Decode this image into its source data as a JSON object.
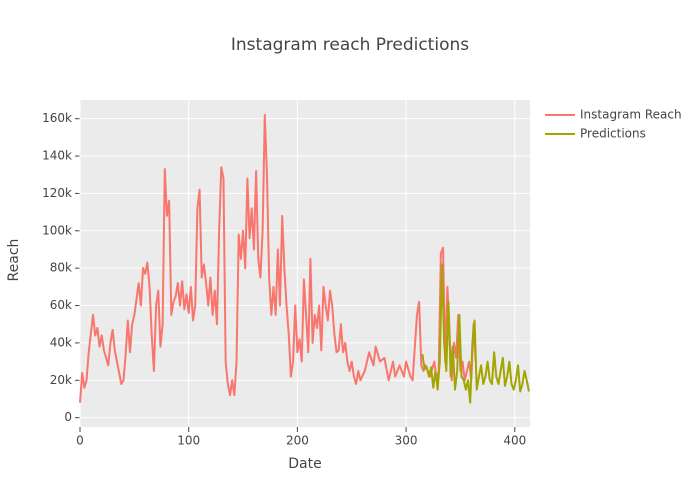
{
  "chart_data": {
    "type": "line",
    "title": "Instagram reach Predictions",
    "x_label": "Date",
    "y_label": "Reach",
    "xlim": [
      0,
      414
    ],
    "xticks": [
      0,
      100,
      200,
      300,
      400
    ],
    "ylim": [
      -5000,
      170000
    ],
    "yticks": [
      0,
      {
        "value": 20000,
        "label": "20k"
      },
      {
        "value": 40000,
        "label": "40k"
      },
      {
        "value": 60000,
        "label": "60k"
      },
      {
        "value": 80000,
        "label": "80k"
      },
      {
        "value": 100000,
        "label": "100k"
      },
      {
        "value": 120000,
        "label": "120k"
      },
      {
        "value": 140000,
        "label": "140k"
      },
      {
        "value": 160000,
        "label": "160k"
      }
    ],
    "grid": true,
    "legend": "top-right",
    "series": [
      {
        "name": "Instagram Reach",
        "color": "#f8766d",
        "x": [
          0,
          2,
          4,
          6,
          8,
          10,
          12,
          14,
          16,
          18,
          20,
          22,
          26,
          28,
          30,
          32,
          34,
          36,
          38,
          40,
          42,
          44,
          46,
          48,
          50,
          54,
          56,
          58,
          60,
          62,
          64,
          66,
          68,
          70,
          72,
          74,
          76,
          78,
          80,
          82,
          84,
          86,
          88,
          90,
          92,
          94,
          96,
          98,
          100,
          102,
          104,
          106,
          108,
          110,
          112,
          114,
          116,
          118,
          120,
          122,
          124,
          126,
          128,
          130,
          132,
          134,
          136,
          138,
          140,
          142,
          144,
          146,
          148,
          150,
          152,
          154,
          156,
          158,
          160,
          162,
          164,
          166,
          168,
          170,
          172,
          174,
          176,
          178,
          180,
          182,
          184,
          186,
          188,
          190,
          192,
          194,
          196,
          198,
          200,
          202,
          204,
          206,
          208,
          210,
          212,
          214,
          216,
          218,
          220,
          222,
          224,
          226,
          228,
          230,
          232,
          234,
          236,
          238,
          240,
          242,
          244,
          246,
          248,
          250,
          252,
          254,
          256,
          258,
          262,
          266,
          270,
          272,
          276,
          280,
          284,
          288,
          290,
          294,
          298,
          300,
          304,
          306,
          310,
          312,
          314,
          316,
          318,
          322,
          326,
          328,
          330,
          332,
          334,
          336,
          338,
          340,
          342,
          344,
          346,
          348,
          350,
          352,
          354,
          356,
          358,
          360,
          362,
          364
        ],
        "values": [
          8000,
          24000,
          16000,
          20000,
          35000,
          45000,
          55000,
          44000,
          48000,
          38000,
          44000,
          36000,
          28000,
          40000,
          47000,
          36000,
          30000,
          24000,
          18000,
          20000,
          34000,
          52000,
          35000,
          50000,
          55000,
          72000,
          60000,
          80000,
          77000,
          83000,
          70000,
          44000,
          25000,
          60000,
          68000,
          38000,
          50000,
          133000,
          108000,
          116000,
          55000,
          62000,
          65000,
          72000,
          60000,
          73000,
          58000,
          66000,
          56000,
          70000,
          52000,
          60000,
          112000,
          122000,
          75000,
          82000,
          72000,
          60000,
          75000,
          55000,
          68000,
          50000,
          100000,
          134000,
          128000,
          30000,
          18000,
          12000,
          20000,
          12000,
          30000,
          98000,
          85000,
          100000,
          80000,
          128000,
          96000,
          112000,
          90000,
          132000,
          85000,
          75000,
          100000,
          162000,
          130000,
          75000,
          55000,
          70000,
          55000,
          90000,
          60000,
          108000,
          80000,
          60000,
          45000,
          22000,
          30000,
          60000,
          35000,
          42000,
          30000,
          74000,
          55000,
          35000,
          85000,
          40000,
          55000,
          48000,
          60000,
          36000,
          70000,
          60000,
          52000,
          68000,
          60000,
          45000,
          35000,
          36000,
          50000,
          35000,
          40000,
          30000,
          25000,
          30000,
          22000,
          18000,
          25000,
          20000,
          25000,
          35000,
          28000,
          38000,
          30000,
          32000,
          20000,
          30000,
          22000,
          28000,
          22000,
          30000,
          22000,
          20000,
          55000,
          62000,
          28000,
          25000,
          28000,
          22000,
          30000,
          20000,
          25000,
          88000,
          91000,
          30000,
          70000,
          45000,
          20000,
          40000,
          32000,
          55000,
          25000,
          30000,
          20000,
          25000,
          30000,
          20000,
          50000,
          30000
        ]
      },
      {
        "name": "Predictions",
        "color": "#a3a500",
        "x": [
          315,
          317,
          319,
          321,
          323,
          325,
          327,
          329,
          331,
          333,
          335,
          337,
          339,
          341,
          343,
          345,
          347,
          349,
          351,
          353,
          355,
          357,
          359,
          361,
          363,
          365,
          367,
          369,
          371,
          373,
          375,
          377,
          379,
          381,
          383,
          385,
          387,
          389,
          391,
          393,
          395,
          397,
          399,
          401,
          403,
          405,
          407,
          409,
          411,
          413
        ],
        "values": [
          34000,
          26000,
          27000,
          22000,
          27000,
          16000,
          25000,
          15000,
          30000,
          82000,
          40000,
          25000,
          62000,
          22000,
          38000,
          15000,
          25000,
          55000,
          22000,
          20000,
          15000,
          20000,
          8000,
          40000,
          52000,
          15000,
          22000,
          28000,
          18000,
          22000,
          30000,
          20000,
          18000,
          35000,
          22000,
          18000,
          25000,
          32000,
          17000,
          22000,
          30000,
          18000,
          15000,
          20000,
          28000,
          14000,
          18000,
          25000,
          20000,
          14000
        ]
      }
    ]
  }
}
